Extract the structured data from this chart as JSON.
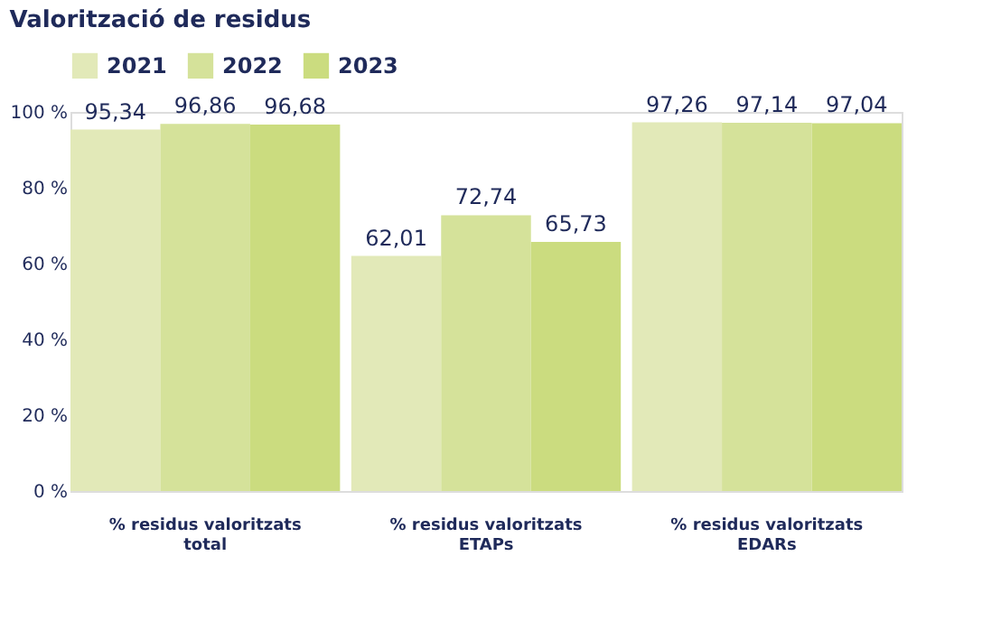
{
  "chart_data": {
    "type": "bar",
    "title": "Valorització de residus",
    "categories": [
      "% residus valoritzats\ntotal",
      "% residus valoritzats\nETAPs",
      "% residus valoritzats\nEDARs"
    ],
    "series": [
      {
        "name": "2021",
        "color": "#e2e9b8",
        "values": [
          95.34,
          62.01,
          97.26
        ],
        "value_labels": [
          "95,34",
          "62,01",
          "97,26"
        ]
      },
      {
        "name": "2022",
        "color": "#d5e29a",
        "values": [
          96.86,
          72.74,
          97.14
        ],
        "value_labels": [
          "96,86",
          "72,74",
          "97,14"
        ]
      },
      {
        "name": "2023",
        "color": "#cbdc7f",
        "values": [
          96.68,
          65.73,
          97.04
        ],
        "value_labels": [
          "96,68",
          "65,73",
          "97,04"
        ]
      }
    ],
    "ylim": [
      0,
      100
    ],
    "yticks": [
      {
        "value": 0,
        "label": "0 %"
      },
      {
        "value": 20,
        "label": "20 %"
      },
      {
        "value": 40,
        "label": "40 %"
      },
      {
        "value": 60,
        "label": "60 %"
      },
      {
        "value": 80,
        "label": "80 %"
      },
      {
        "value": 100,
        "label": "100 %"
      }
    ],
    "legend": "top",
    "grid": false
  }
}
